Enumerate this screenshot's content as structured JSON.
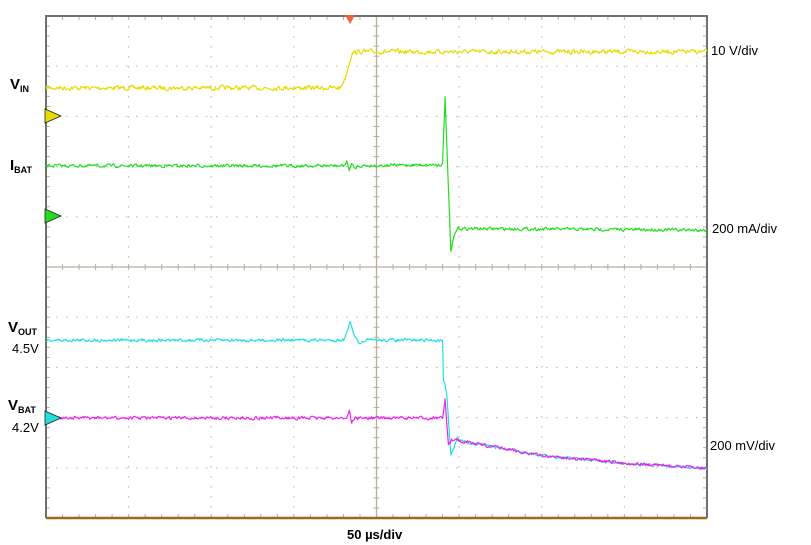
{
  "chart_data": {
    "type": "line",
    "title": "",
    "time_scale_label": "50 µs/div",
    "x_unit": "µs",
    "xlim": [
      0,
      400
    ],
    "grid": true,
    "grid_divisions": {
      "horizontal": 8,
      "vertical": 10
    },
    "trigger_marker_color": "#f06040",
    "trigger_time": 184,
    "channels": [
      {
        "id": "vin",
        "name": "V",
        "name_sub": "IN",
        "level_label": "",
        "scale_label": "10 V/div",
        "unit": "V",
        "color": "#e6dc00",
        "points": [
          [
            0,
            5.6
          ],
          [
            178,
            5.6
          ],
          [
            181,
            7.5
          ],
          [
            185,
            12.4
          ],
          [
            188,
            12.8
          ],
          [
            400,
            12.8
          ]
        ]
      },
      {
        "id": "ibat",
        "name": "I",
        "name_sub": "BAT",
        "level_label": "",
        "scale_label": "200 mA/div",
        "unit": "mA",
        "color": "#22dd22",
        "points": [
          [
            0,
            200
          ],
          [
            180,
            200
          ],
          [
            182,
            215
          ],
          [
            183.5,
            185
          ],
          [
            185,
            205
          ],
          [
            187,
            190
          ],
          [
            189,
            200
          ],
          [
            240,
            205
          ],
          [
            241.5,
            476
          ],
          [
            243,
            200
          ],
          [
            245,
            -144
          ],
          [
            247,
            -80
          ],
          [
            249,
            -50
          ],
          [
            400,
            -56
          ]
        ]
      },
      {
        "id": "vout",
        "name": "V",
        "name_sub": "OUT",
        "level_label": "4.5V",
        "scale_label": "200 mV/div",
        "unit": "V",
        "color": "#22dddd",
        "points": [
          [
            0,
            4.51
          ],
          [
            180,
            4.51
          ],
          [
            184,
            4.58
          ],
          [
            187,
            4.52
          ],
          [
            190,
            4.49
          ],
          [
            193,
            4.51
          ],
          [
            240,
            4.51
          ],
          [
            240.5,
            4.36
          ],
          [
            242.5,
            4.3
          ],
          [
            245,
            4.05
          ],
          [
            247,
            4.09
          ],
          [
            249,
            4.12
          ],
          [
            250,
            4.11
          ],
          [
            275,
            4.08
          ],
          [
            300,
            4.05
          ],
          [
            350,
            4.02
          ],
          [
            400,
            4.0
          ]
        ]
      },
      {
        "id": "vbat",
        "name": "V",
        "name_sub": "BAT",
        "level_label": "4.2V",
        "scale_label": "200 mV/div",
        "unit": "V",
        "color": "#ee22ee",
        "points": [
          [
            0,
            4.2
          ],
          [
            182,
            4.2
          ],
          [
            183.5,
            4.23
          ],
          [
            185,
            4.18
          ],
          [
            187,
            4.2
          ],
          [
            240,
            4.2
          ],
          [
            241.5,
            4.27
          ],
          [
            243.5,
            4.09
          ],
          [
            245.5,
            4.11
          ],
          [
            248,
            4.12
          ],
          [
            250,
            4.11
          ],
          [
            275,
            4.08
          ],
          [
            300,
            4.05
          ],
          [
            350,
            4.02
          ],
          [
            400,
            4.0
          ]
        ]
      }
    ]
  }
}
